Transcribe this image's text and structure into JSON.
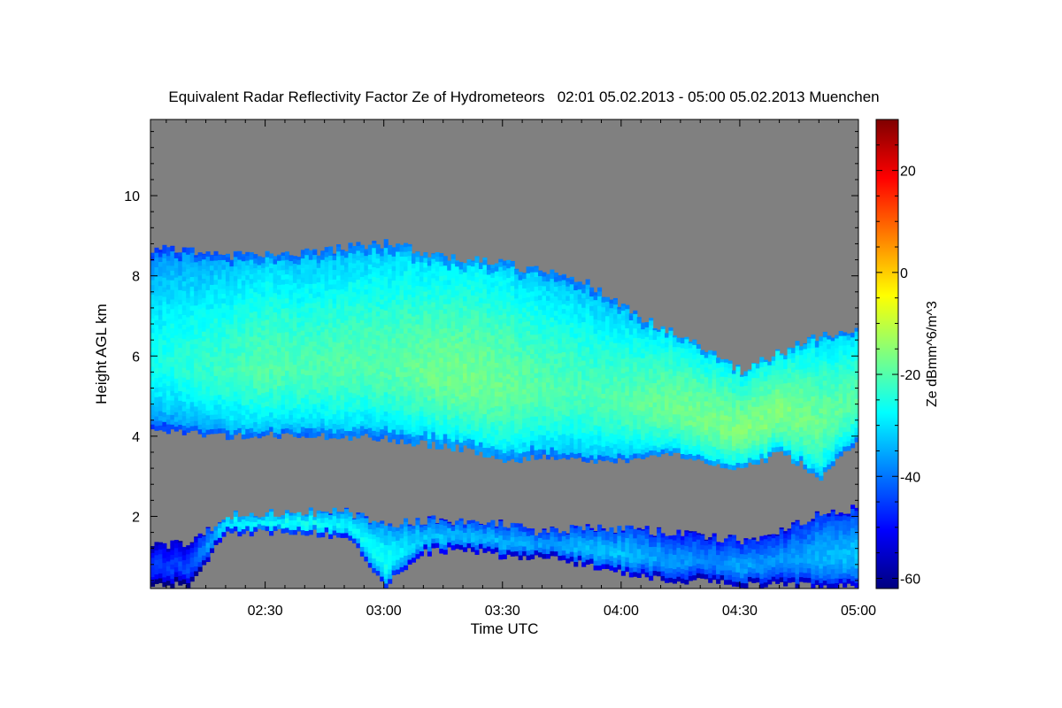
{
  "chart_data": {
    "type": "heatmap",
    "title": "Equivalent Radar Reflectivity Factor Ze of Hydrometeors   02:01 05.02.2013 - 05:00 05.02.2013 Muenchen",
    "xlabel": "Time UTC",
    "ylabel": "Height AGL km",
    "xlim_minutes": [
      121,
      300
    ],
    "ylim": [
      0.2,
      11.9
    ],
    "x_ticks": [
      {
        "label": "02:30",
        "minute": 150
      },
      {
        "label": "03:00",
        "minute": 180
      },
      {
        "label": "03:30",
        "minute": 210
      },
      {
        "label": "04:00",
        "minute": 240
      },
      {
        "label": "04:30",
        "minute": 270
      },
      {
        "label": "05:00",
        "minute": 300
      }
    ],
    "y_ticks": [
      2,
      4,
      6,
      8,
      10
    ],
    "background_color": "#808080",
    "colorbar": {
      "label": "Ze dBmm^6/m^3",
      "min": -62,
      "max": 30,
      "ticks": [
        -60,
        -40,
        -20,
        0,
        20
      ],
      "colormap": "jet"
    },
    "layers": [
      {
        "name": "upper",
        "x": [
          121,
          130,
          140,
          150,
          160,
          170,
          180,
          190,
          200,
          210,
          220,
          230,
          240,
          250,
          260,
          270,
          280,
          290,
          300
        ],
        "top": [
          8.7,
          8.6,
          8.5,
          8.5,
          8.6,
          8.7,
          8.8,
          8.6,
          8.4,
          8.3,
          8.1,
          7.9,
          7.2,
          6.7,
          6.2,
          5.6,
          6.1,
          6.5,
          6.6
        ],
        "base": [
          4.1,
          4.1,
          4.0,
          4.05,
          4.0,
          4.0,
          3.95,
          3.8,
          3.7,
          3.4,
          3.5,
          3.4,
          3.4,
          3.6,
          3.4,
          3.2,
          3.6,
          3.0,
          4.0
        ],
        "core_ze": [
          -26,
          -24,
          -22,
          -20,
          -21,
          -20,
          -20,
          -18,
          -17,
          -18,
          -20,
          -21,
          -20,
          -18,
          -17,
          -16,
          -16,
          -18,
          -20
        ]
      },
      {
        "name": "lower",
        "x": [
          121,
          130,
          140,
          150,
          160,
          170,
          180,
          190,
          200,
          210,
          220,
          230,
          240,
          250,
          260,
          270,
          280,
          290,
          300
        ],
        "top": [
          1.3,
          1.3,
          2.0,
          2.1,
          2.1,
          2.1,
          1.8,
          1.9,
          1.9,
          1.8,
          1.6,
          1.7,
          1.7,
          1.6,
          1.5,
          1.4,
          1.6,
          2.1,
          2.2
        ],
        "base": [
          0.3,
          0.3,
          1.6,
          1.6,
          1.6,
          1.5,
          0.3,
          1.1,
          1.2,
          1.0,
          1.0,
          0.8,
          0.6,
          0.4,
          0.4,
          0.3,
          0.3,
          0.3,
          0.3
        ],
        "core_ze": [
          -45,
          -44,
          -28,
          -27,
          -26,
          -28,
          -26,
          -32,
          -34,
          -34,
          -36,
          -34,
          -33,
          -36,
          -38,
          -36,
          -37,
          -34,
          -33
        ]
      }
    ]
  }
}
